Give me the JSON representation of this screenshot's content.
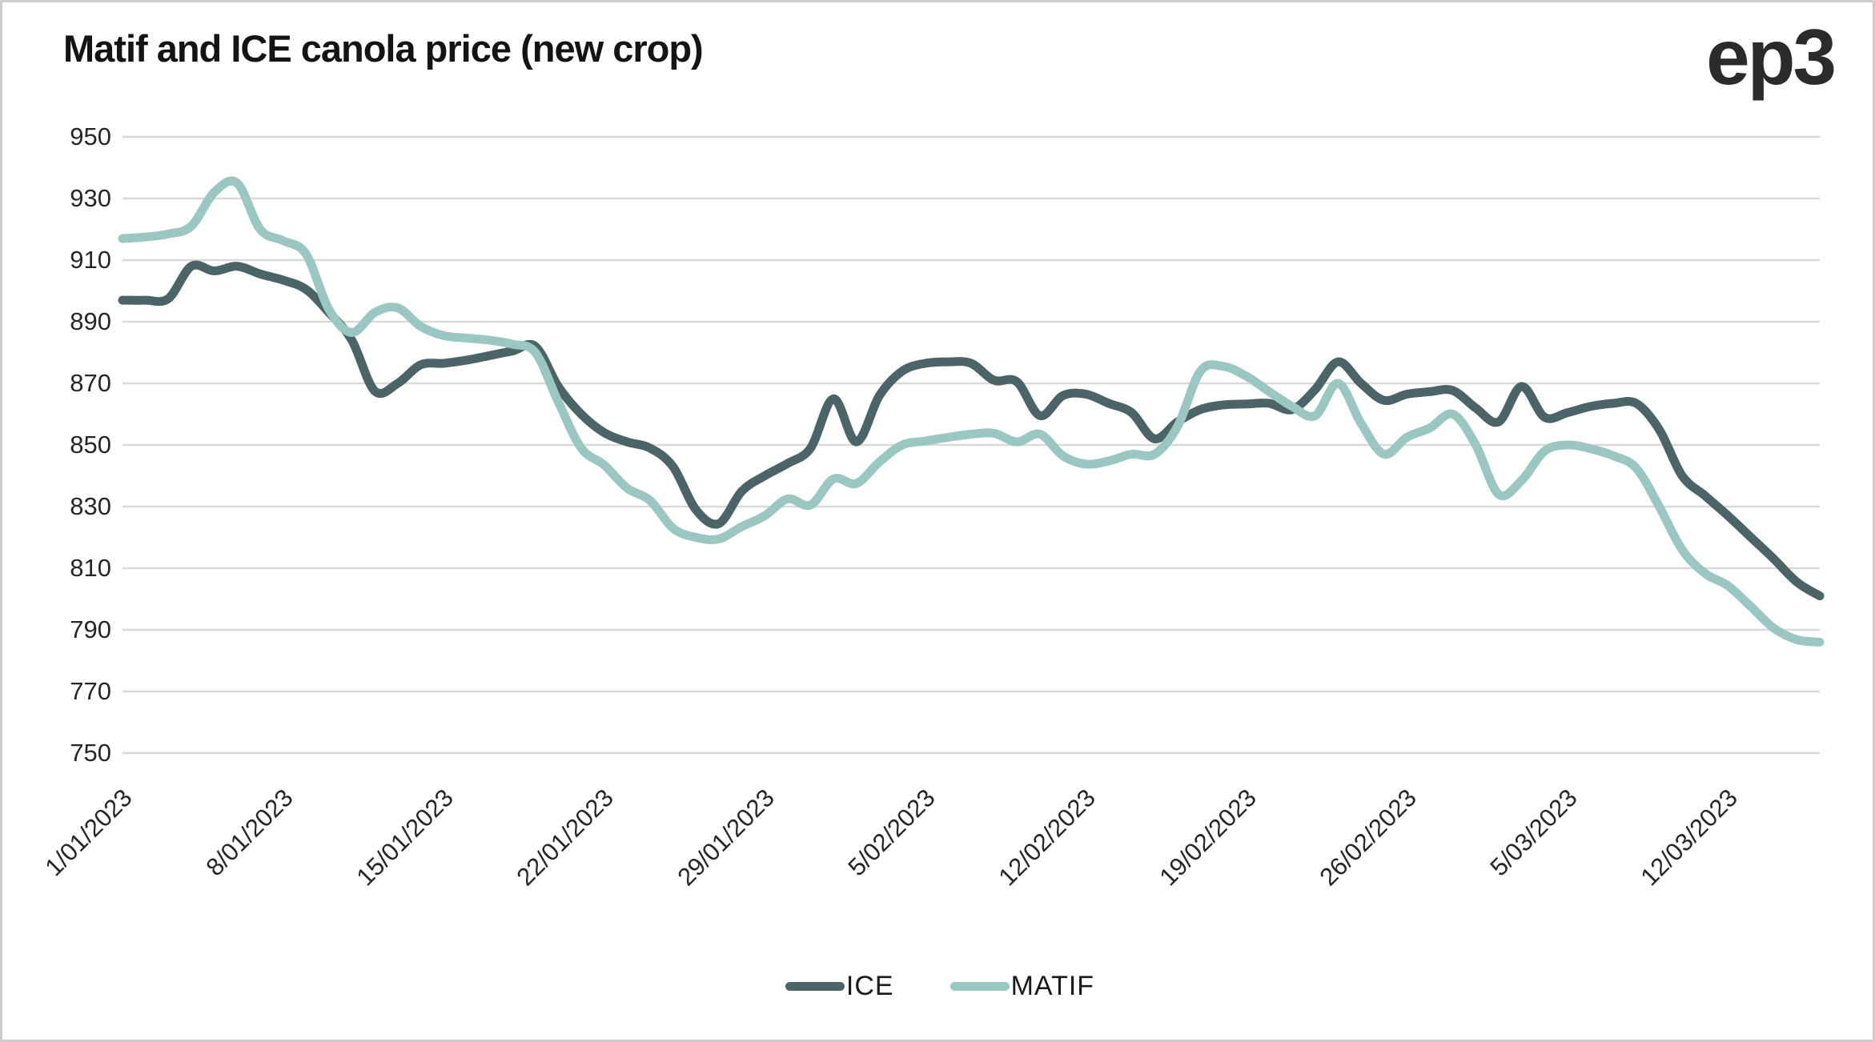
{
  "title": "Matif and ICE canola price (new crop)",
  "logo": "ep3",
  "colors": {
    "ice": "#4b6467",
    "matif": "#9ac7c1",
    "gridline": "#d9d9d9",
    "text": "#262626",
    "title_text": "#141414"
  },
  "legend": {
    "items": [
      {
        "label": "ICE",
        "color": "#4b6467"
      },
      {
        "label": "MATIF",
        "color": "#9ac7c1"
      }
    ]
  },
  "chart_data": {
    "type": "line",
    "title": "Matif and ICE canola price (new crop)",
    "xlabel": "",
    "ylabel": "",
    "ylim": [
      750,
      950
    ],
    "y_ticks": [
      950,
      930,
      910,
      890,
      870,
      850,
      830,
      810,
      790,
      770,
      750
    ],
    "grid": "horizontal-only",
    "legend_position": "bottom-center",
    "x_start_date": "1/01/2023",
    "x_frequency": "daily",
    "x_tick_every_days": 7,
    "x_tick_labels": [
      "1/01/2023",
      "8/01/2023",
      "15/01/2023",
      "22/01/2023",
      "29/01/2023",
      "5/02/2023",
      "12/02/2023",
      "19/02/2023",
      "26/02/2023",
      "5/03/2023",
      "12/03/2023"
    ],
    "series": [
      {
        "name": "ICE",
        "color": "#4b6467",
        "values": [
          897,
          897,
          897.5,
          908,
          906.5,
          908,
          905.5,
          903.5,
          900.5,
          893,
          884,
          867.5,
          870,
          876,
          876.5,
          877.5,
          879,
          880.5,
          882,
          869,
          860,
          854,
          851,
          849,
          843,
          829,
          824.5,
          835,
          840,
          844,
          849,
          865,
          851,
          866,
          874,
          876.5,
          877,
          876.5,
          871,
          870.5,
          859.5,
          866,
          866.5,
          863.5,
          860.5,
          852,
          857.5,
          861.5,
          863,
          863.3,
          863.5,
          861.5,
          868,
          877,
          870,
          864.5,
          866.5,
          867.3,
          867.7,
          862,
          857.5,
          869,
          859,
          860.5,
          862.5,
          863.5,
          863.5,
          855,
          840,
          833.5,
          827,
          820,
          813,
          805.5,
          801
        ]
      },
      {
        "name": "MATIF",
        "color": "#9ac7c1",
        "values": [
          917,
          917.5,
          918.5,
          921,
          932,
          935,
          920,
          916.3,
          912,
          894,
          886.5,
          893,
          894.5,
          888.5,
          885.5,
          884.7,
          884,
          882.7,
          880,
          864,
          849,
          843.5,
          836,
          832,
          823,
          820,
          819.5,
          823.5,
          827,
          832.5,
          830.5,
          839,
          837.5,
          844.5,
          850,
          851.3,
          852.5,
          853.5,
          853.8,
          851,
          853.5,
          846.5,
          843.8,
          844.8,
          847,
          847,
          856,
          874,
          875.5,
          872.3,
          867.3,
          862.5,
          859.5,
          870,
          857,
          847,
          852.5,
          855.5,
          860,
          850,
          834,
          838.5,
          848,
          850,
          848.8,
          846.5,
          842.5,
          830,
          816,
          808.3,
          804.3,
          797.5,
          790.5,
          786.8,
          786
        ]
      }
    ]
  }
}
